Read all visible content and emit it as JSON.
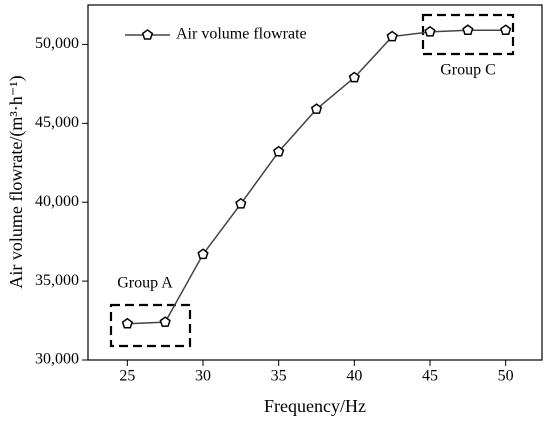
{
  "chart_data": {
    "type": "line",
    "x_label": "Frequency/Hz",
    "y_label": "Air volume flowrate/(m³·h⁻¹)",
    "x": [
      25,
      27.5,
      30,
      32.5,
      35,
      37.5,
      40,
      42.5,
      45,
      47.5,
      50
    ],
    "series": [
      {
        "name": "Air volume flowrate",
        "color": "#444444",
        "values": [
          32300,
          32400,
          36700,
          39900,
          43200,
          45900,
          47900,
          50500,
          50800,
          50900,
          50900
        ]
      }
    ],
    "xlim": [
      22.4,
      52.4
    ],
    "xticks": [
      25,
      30,
      35,
      40,
      45,
      50
    ],
    "ylim": [
      30000,
      52500
    ],
    "yticks": [
      {
        "value": 30000,
        "label": "30,000"
      },
      {
        "value": 35000,
        "label": "35,000"
      },
      {
        "value": 40000,
        "label": "40,000"
      },
      {
        "value": 45000,
        "label": "45,000"
      },
      {
        "value": 50000,
        "label": "50,000"
      }
    ],
    "legend": "upper left",
    "annotations": [
      "Group A",
      "Group C"
    ]
  }
}
